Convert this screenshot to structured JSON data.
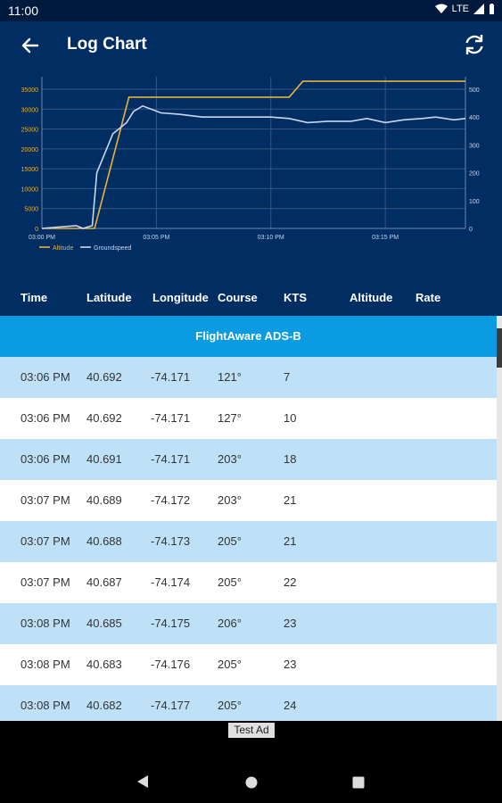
{
  "status": {
    "time": "11:00",
    "network": "LTE"
  },
  "app_bar": {
    "title": "Log Chart",
    "back_icon": "arrow-left-icon",
    "refresh_icon": "refresh-icon"
  },
  "chart_data": {
    "type": "line",
    "x_ticks": [
      "03:00 PM",
      "03:05 PM",
      "03:10 PM",
      "03:15 PM"
    ],
    "y_left_ticks": [
      0,
      5000,
      10000,
      15000,
      20000,
      25000,
      30000,
      35000
    ],
    "y_left_range": [
      0,
      35000
    ],
    "y_right_ticks": [
      0,
      100,
      200,
      300,
      400,
      500
    ],
    "y_right_range": [
      0,
      500
    ],
    "x_range_minutes": [
      0,
      18.5
    ],
    "grid": true,
    "legend_position": "bottom-left",
    "series": [
      {
        "name": "Altitude",
        "color": "#e8b43a",
        "axis": "left",
        "points": [
          [
            0,
            0
          ],
          [
            1.8,
            0
          ],
          [
            2.3,
            0
          ],
          [
            3.8,
            33000
          ],
          [
            4.3,
            33000
          ],
          [
            10.8,
            33000
          ],
          [
            11.4,
            37000
          ],
          [
            18.5,
            37000
          ]
        ]
      },
      {
        "name": "Groundspeed",
        "color": "#c9d7ef",
        "axis": "right",
        "points": [
          [
            0,
            0
          ],
          [
            1.5,
            10
          ],
          [
            1.8,
            0
          ],
          [
            2.2,
            10
          ],
          [
            2.4,
            200
          ],
          [
            2.8,
            280
          ],
          [
            3.1,
            340
          ],
          [
            3.4,
            360
          ],
          [
            3.7,
            380
          ],
          [
            4.0,
            420
          ],
          [
            4.4,
            440
          ],
          [
            5.2,
            415
          ],
          [
            6.0,
            410
          ],
          [
            7.0,
            400
          ],
          [
            8.0,
            400
          ],
          [
            9.0,
            400
          ],
          [
            10.0,
            400
          ],
          [
            10.8,
            395
          ],
          [
            11.6,
            380
          ],
          [
            12.5,
            385
          ],
          [
            13.5,
            385
          ],
          [
            14.2,
            395
          ],
          [
            15.0,
            380
          ],
          [
            15.8,
            390
          ],
          [
            16.6,
            395
          ],
          [
            17.2,
            400
          ],
          [
            18.0,
            390
          ],
          [
            18.5,
            395
          ]
        ]
      }
    ]
  },
  "table": {
    "columns": [
      "Time",
      "Latitude",
      "Longitude",
      "Course",
      "KTS",
      "Altitude",
      "Rate"
    ],
    "source_label": "FlightAware ADS-B",
    "rows": [
      {
        "time": "03:06 PM",
        "lat": "40.692",
        "lon": "-74.171",
        "course": "121°",
        "kts": "7",
        "alt": "",
        "rate": ""
      },
      {
        "time": "03:06 PM",
        "lat": "40.692",
        "lon": "-74.171",
        "course": "127°",
        "kts": "10",
        "alt": "",
        "rate": ""
      },
      {
        "time": "03:06 PM",
        "lat": "40.691",
        "lon": "-74.171",
        "course": "203°",
        "kts": "18",
        "alt": "",
        "rate": ""
      },
      {
        "time": "03:07 PM",
        "lat": "40.689",
        "lon": "-74.172",
        "course": "203°",
        "kts": "21",
        "alt": "",
        "rate": ""
      },
      {
        "time": "03:07 PM",
        "lat": "40.688",
        "lon": "-74.173",
        "course": "205°",
        "kts": "21",
        "alt": "",
        "rate": ""
      },
      {
        "time": "03:07 PM",
        "lat": "40.687",
        "lon": "-74.174",
        "course": "205°",
        "kts": "22",
        "alt": "",
        "rate": ""
      },
      {
        "time": "03:08 PM",
        "lat": "40.685",
        "lon": "-74.175",
        "course": "206°",
        "kts": "23",
        "alt": "",
        "rate": ""
      },
      {
        "time": "03:08 PM",
        "lat": "40.683",
        "lon": "-74.176",
        "course": "205°",
        "kts": "23",
        "alt": "",
        "rate": ""
      },
      {
        "time": "03:08 PM",
        "lat": "40.682",
        "lon": "-74.177",
        "course": "205°",
        "kts": "24",
        "alt": "",
        "rate": ""
      }
    ]
  },
  "ad": {
    "label": "Test Ad"
  },
  "nav": {
    "back_icon": "triangle-back-icon",
    "home_icon": "circle-home-icon",
    "recents_icon": "square-recents-icon"
  },
  "colors": {
    "app_bar": "#002d62",
    "source_banner": "#0a9be0",
    "row_alt": "#bfe1f8",
    "row_plain": "#ffffff"
  }
}
